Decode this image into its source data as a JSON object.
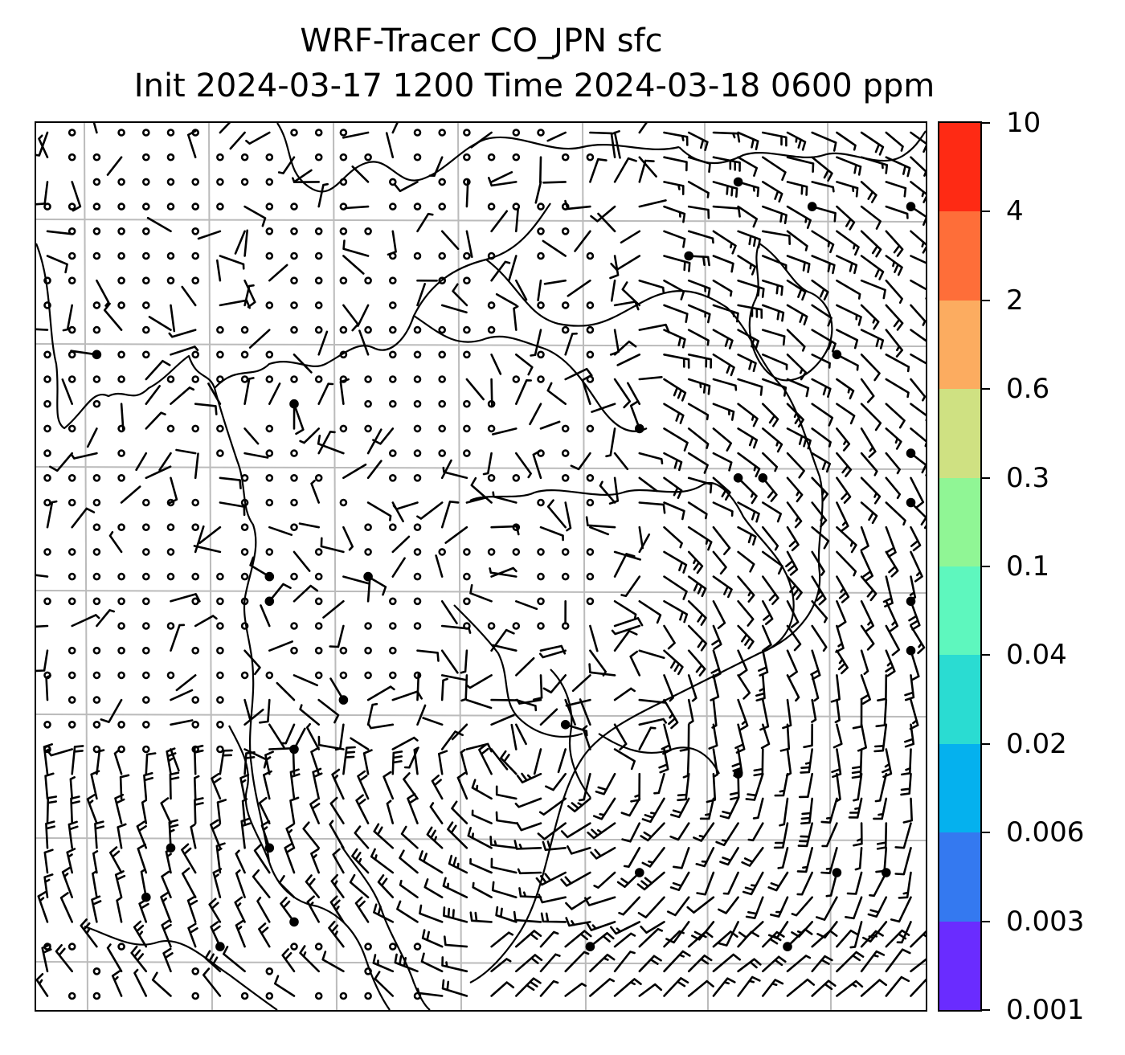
{
  "title": {
    "line1": "WRF-Tracer CO_JPN sfc",
    "line2": "Init 2024-03-17 1200 Time 2024-03-18 0600 ppm"
  },
  "colorbar": {
    "levels": [
      "0.001",
      "0.003",
      "0.006",
      "0.02",
      "0.04",
      "0.1",
      "0.3",
      "0.6",
      "2",
      "4",
      "10"
    ],
    "colors": [
      "#6a2cff",
      "#3479f0",
      "#05b1ee",
      "#2adcd2",
      "#5ef7be",
      "#90f695",
      "#cfe182",
      "#fcac60",
      "#fe6e39",
      "#fe2a14"
    ]
  },
  "map": {
    "gridlines": true,
    "grid_color": "#bbbbbb",
    "features": [
      "coastlines",
      "wind-barbs",
      "calm-circles"
    ]
  }
}
